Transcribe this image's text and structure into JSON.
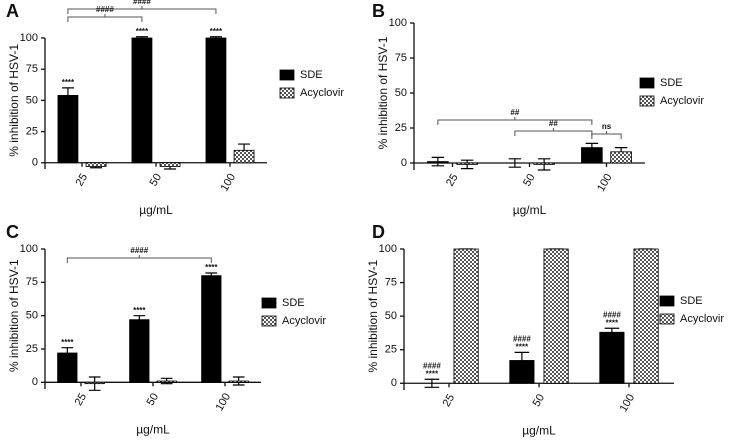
{
  "chart_data": [
    {
      "type": "bar",
      "panel": "A",
      "y_label": "% inhibition of HSV-1",
      "x_label": "µg/mL",
      "categories": [
        "25",
        "50",
        "100"
      ],
      "ylim": [
        -5,
        100
      ],
      "yticks": [
        0,
        25,
        50,
        75,
        100
      ],
      "series": [
        {
          "name": "SDE",
          "color": "#000000",
          "values": [
            54,
            100,
            100
          ],
          "errors": [
            6,
            1,
            1
          ],
          "labels": [
            [
              "****"
            ],
            [
              "****"
            ],
            [
              "****"
            ]
          ]
        },
        {
          "name": "Acyclovir",
          "color": "#555555",
          "pattern": "checker",
          "values": [
            -3,
            -3,
            10
          ],
          "errors": [
            1,
            2,
            5
          ]
        }
      ],
      "brackets": [
        {
          "label": "####",
          "from": [
            0,
            0
          ],
          "to": [
            1,
            0
          ]
        },
        {
          "label": "####",
          "from": [
            0,
            0
          ],
          "to": [
            2,
            0
          ]
        }
      ]
    },
    {
      "type": "bar",
      "panel": "B",
      "y_label": "% inhibition of HSV-1",
      "x_label": "µg/mL",
      "categories": [
        "25",
        "50",
        "100"
      ],
      "ylim": [
        -5,
        100
      ],
      "yticks": [
        0,
        25,
        50,
        75,
        100
      ],
      "series": [
        {
          "name": "SDE",
          "color": "#000000",
          "values": [
            1,
            0,
            11
          ],
          "errors": [
            3,
            3,
            3
          ]
        },
        {
          "name": "Acyclovir",
          "color": "#555555",
          "pattern": "checker",
          "values": [
            -1,
            -1,
            8
          ],
          "errors": [
            3,
            4,
            3
          ]
        }
      ],
      "brackets": [
        {
          "label": "##",
          "from": [
            0,
            0
          ],
          "to": [
            2,
            0
          ]
        },
        {
          "label": "##",
          "from": [
            1,
            0
          ],
          "to": [
            2,
            0
          ]
        },
        {
          "label": "ns",
          "from": [
            2,
            0
          ],
          "to": [
            2,
            1
          ]
        }
      ]
    },
    {
      "type": "bar",
      "panel": "C",
      "y_label": "% inhibition of HSV-1",
      "x_label": "µg/mL",
      "categories": [
        "25",
        "50",
        "100"
      ],
      "ylim": [
        -5,
        100
      ],
      "yticks": [
        0,
        25,
        50,
        75,
        100
      ],
      "series": [
        {
          "name": "SDE",
          "color": "#000000",
          "values": [
            22,
            47,
            80
          ],
          "errors": [
            4,
            3,
            2
          ],
          "labels": [
            [
              "****"
            ],
            [
              "****"
            ],
            [
              "****"
            ]
          ]
        },
        {
          "name": "Acyclovir",
          "color": "#555555",
          "pattern": "checker",
          "values": [
            -1,
            1,
            1
          ],
          "errors": [
            5,
            2,
            3
          ]
        }
      ],
      "brackets": [
        {
          "label": "####",
          "from": [
            0,
            0
          ],
          "to": [
            2,
            0
          ]
        }
      ]
    },
    {
      "type": "bar",
      "panel": "D",
      "y_label": "% inhibition of HSV-1",
      "x_label": "µg/mL",
      "categories": [
        "25",
        "50",
        "100"
      ],
      "ylim": [
        -5,
        100
      ],
      "yticks": [
        0,
        25,
        50,
        75,
        100
      ],
      "series": [
        {
          "name": "SDE",
          "color": "#000000",
          "values": [
            0,
            17,
            38
          ],
          "errors": [
            3,
            6,
            3
          ],
          "labels": [
            [
              "####",
              "****"
            ],
            [
              "####",
              "****"
            ],
            [
              "####",
              "****"
            ]
          ]
        },
        {
          "name": "Acyclovir",
          "color": "#555555",
          "pattern": "checker",
          "values": [
            100,
            100,
            100
          ],
          "errors": [
            0,
            0,
            0
          ]
        }
      ]
    }
  ]
}
